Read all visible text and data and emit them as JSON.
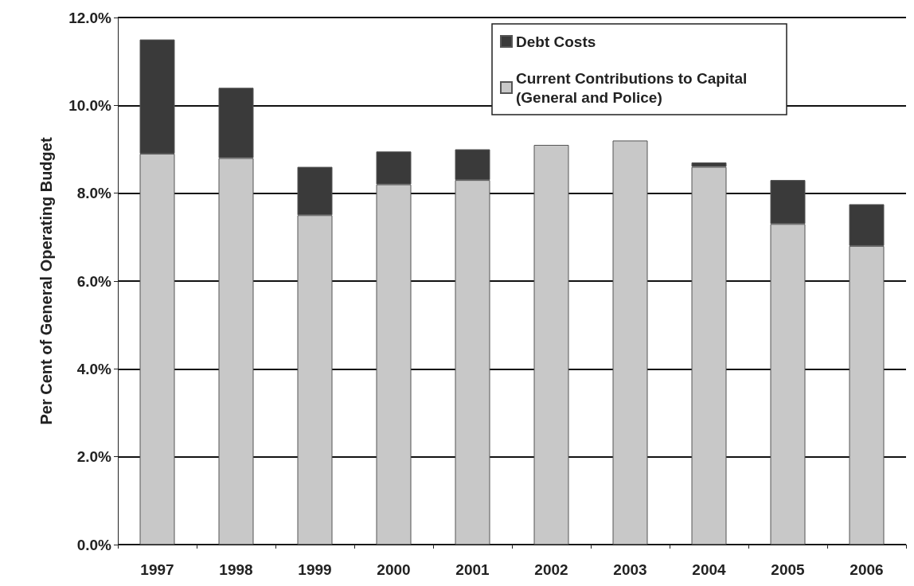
{
  "chart_data": {
    "type": "bar",
    "stacked": true,
    "ylabel": "Per Cent of General Operating Budget",
    "categories": [
      "1997",
      "1998",
      "1999",
      "2000",
      "2001",
      "2002",
      "2003",
      "2004",
      "2005",
      "2006"
    ],
    "series": [
      {
        "name": "Current Contributions to Capital (General and Police)",
        "color": "#c8c8c8",
        "values": [
          8.9,
          8.8,
          7.5,
          8.2,
          8.3,
          9.1,
          9.2,
          8.6,
          7.3,
          6.8
        ]
      },
      {
        "name": "Debt Costs",
        "color": "#3a3a3a",
        "values": [
          2.6,
          1.6,
          1.1,
          0.75,
          0.7,
          null,
          null,
          0.1,
          1.0,
          0.95
        ]
      }
    ],
    "ylim": [
      0,
      12
    ],
    "yticks": [
      {
        "value": 0,
        "label": "0.0%"
      },
      {
        "value": 2,
        "label": "2.0%"
      },
      {
        "value": 4,
        "label": "4.0%"
      },
      {
        "value": 6,
        "label": "6.0%"
      },
      {
        "value": 8,
        "label": "8.0%"
      },
      {
        "value": 10,
        "label": "10.0%"
      },
      {
        "value": 12,
        "label": "12.0%"
      }
    ],
    "grid": "y",
    "legend": "top right"
  }
}
